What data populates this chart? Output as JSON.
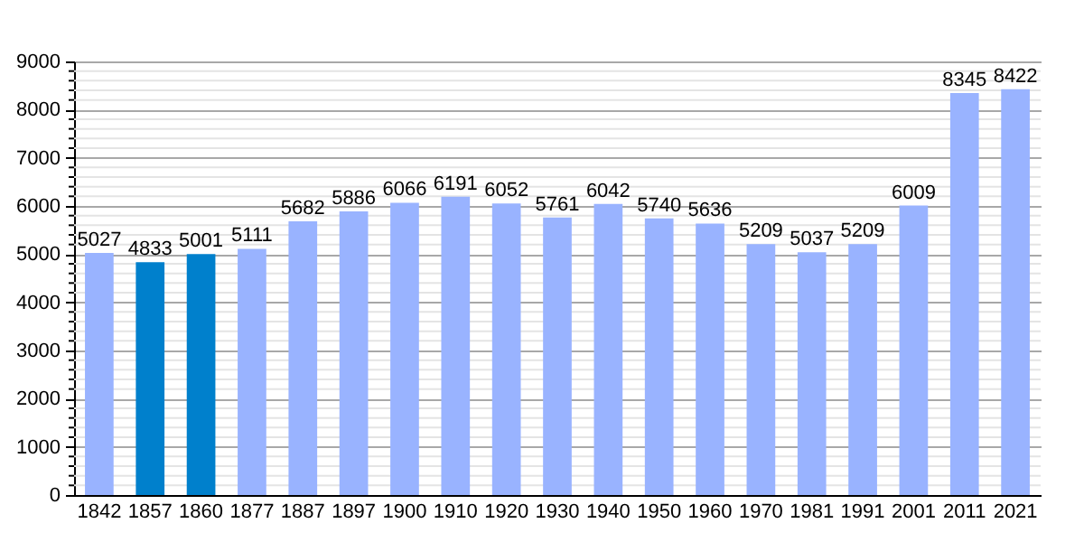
{
  "chart_data": {
    "type": "bar",
    "categories": [
      "1842",
      "1857",
      "1860",
      "1877",
      "1887",
      "1897",
      "1900",
      "1910",
      "1920",
      "1930",
      "1940",
      "1950",
      "1960",
      "1970",
      "1981",
      "1991",
      "2001",
      "2011",
      "2021"
    ],
    "values": [
      5027,
      4833,
      5001,
      5111,
      5682,
      5886,
      6066,
      6191,
      6052,
      5761,
      6042,
      5740,
      5636,
      5209,
      5037,
      5209,
      6009,
      8345,
      8422
    ],
    "colors": [
      "#99b3ff",
      "#0080cc",
      "#0080cc",
      "#99b3ff",
      "#99b3ff",
      "#99b3ff",
      "#99b3ff",
      "#99b3ff",
      "#99b3ff",
      "#99b3ff",
      "#99b3ff",
      "#99b3ff",
      "#99b3ff",
      "#99b3ff",
      "#99b3ff",
      "#99b3ff",
      "#99b3ff",
      "#99b3ff",
      "#99b3ff"
    ],
    "ylim": [
      0,
      9000
    ],
    "yticks": [
      0,
      {
        "value": 200,
        "label": null
      },
      {
        "value": 400,
        "label": null
      },
      {
        "value": 600,
        "label": null
      },
      {
        "value": 800,
        "label": null
      },
      1000,
      {
        "value": 1200,
        "label": null
      },
      {
        "value": 1400,
        "label": null
      },
      {
        "value": 1600,
        "label": null
      },
      {
        "value": 1800,
        "label": null
      },
      2000,
      {
        "value": 2200,
        "label": null
      },
      {
        "value": 2400,
        "label": null
      },
      {
        "value": 2600,
        "label": null
      },
      {
        "value": 2800,
        "label": null
      },
      3000,
      {
        "value": 3200,
        "label": null
      },
      {
        "value": 3400,
        "label": null
      },
      {
        "value": 3600,
        "label": null
      },
      {
        "value": 3800,
        "label": null
      },
      4000,
      {
        "value": 4200,
        "label": null
      },
      {
        "value": 4400,
        "label": null
      },
      {
        "value": 4600,
        "label": null
      },
      {
        "value": 4800,
        "label": null
      },
      5000,
      {
        "value": 5200,
        "label": null
      },
      {
        "value": 5400,
        "label": null
      },
      {
        "value": 5600,
        "label": null
      },
      {
        "value": 5800,
        "label": null
      },
      6000,
      {
        "value": 6200,
        "label": null
      },
      {
        "value": 6400,
        "label": null
      },
      {
        "value": 6600,
        "label": null
      },
      {
        "value": 6800,
        "label": null
      },
      7000,
      {
        "value": 7200,
        "label": null
      },
      {
        "value": 7400,
        "label": null
      },
      {
        "value": 7600,
        "label": null
      },
      {
        "value": 7800,
        "label": null
      },
      8000,
      {
        "value": 8200,
        "label": null
      },
      {
        "value": 8400,
        "label": null
      },
      {
        "value": 8600,
        "label": null
      },
      {
        "value": 8800,
        "label": null
      },
      9000
    ],
    "grid": "y",
    "data_labels": true
  }
}
